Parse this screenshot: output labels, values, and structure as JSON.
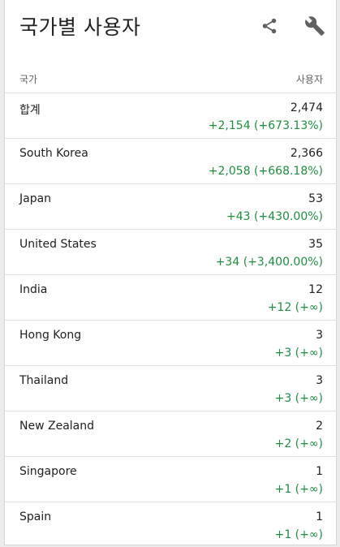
{
  "header": {
    "title": "국가별 사용자",
    "share_icon": "share-icon",
    "customize_icon": "wrench-icon"
  },
  "table": {
    "col_country": "국가",
    "col_users": "사용자",
    "rows": [
      {
        "name": "합계",
        "value": "2,474",
        "delta": "+2,154 (+673.13%)"
      },
      {
        "name": "South Korea",
        "value": "2,366",
        "delta": "+2,058 (+668.18%)"
      },
      {
        "name": "Japan",
        "value": "53",
        "delta": "+43 (+430.00%)"
      },
      {
        "name": "United States",
        "value": "35",
        "delta": "+34 (+3,400.00%)"
      },
      {
        "name": "India",
        "value": "12",
        "delta": "+12 (+∞)"
      },
      {
        "name": "Hong Kong",
        "value": "3",
        "delta": "+3 (+∞)"
      },
      {
        "name": "Thailand",
        "value": "3",
        "delta": "+3 (+∞)"
      },
      {
        "name": "New Zealand",
        "value": "2",
        "delta": "+2 (+∞)"
      },
      {
        "name": "Singapore",
        "value": "1",
        "delta": "+1 (+∞)"
      },
      {
        "name": "Spain",
        "value": "1",
        "delta": "+1 (+∞)"
      }
    ]
  },
  "colors": {
    "positive": "#1e8e3e",
    "text": "#212121",
    "muted": "#616161",
    "icon": "#616161"
  }
}
